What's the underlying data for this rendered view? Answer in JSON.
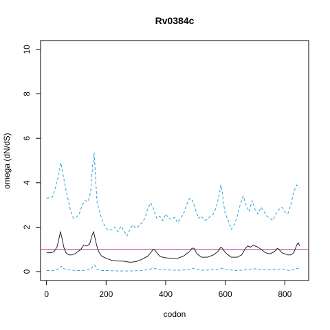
{
  "chart_data": {
    "type": "line",
    "title": "Rv0384c",
    "xlabel": "codon",
    "ylabel": "omega (dN/dS)",
    "xlim": [
      -20,
      880
    ],
    "ylim": [
      -0.4,
      10.4
    ],
    "xticks": [
      0,
      200,
      400,
      600,
      800
    ],
    "yticks": [
      0,
      2,
      4,
      6,
      8,
      10
    ],
    "grid": false,
    "reference_line": {
      "y": 1,
      "color": "#cc3399"
    },
    "series": [
      {
        "style": "dashed",
        "color": "#29a3d9",
        "x": [
          0,
          20,
          30,
          40,
          48,
          55,
          65,
          80,
          90,
          100,
          110,
          120,
          130,
          140,
          148,
          155,
          160,
          165,
          170,
          180,
          190,
          200,
          210,
          220,
          230,
          240,
          250,
          260,
          270,
          280,
          290,
          300,
          310,
          320,
          330,
          340,
          350,
          360,
          370,
          380,
          390,
          400,
          410,
          420,
          430,
          440,
          450,
          460,
          470,
          480,
          490,
          500,
          510,
          520,
          530,
          540,
          550,
          560,
          570,
          580,
          585,
          590,
          595,
          600,
          610,
          620,
          630,
          640,
          650,
          660,
          670,
          680,
          690,
          700,
          710,
          720,
          730,
          740,
          750,
          760,
          770,
          780,
          790,
          800,
          810,
          820,
          830,
          840,
          850
        ],
        "values": [
          3.3,
          3.35,
          3.8,
          4.3,
          4.9,
          4.4,
          3.7,
          2.8,
          2.4,
          2.45,
          2.6,
          3.0,
          3.2,
          3.15,
          3.6,
          4.8,
          5.35,
          4.1,
          3.1,
          2.6,
          2.2,
          1.95,
          1.85,
          1.9,
          2.0,
          1.8,
          2.05,
          1.85,
          1.6,
          1.9,
          2.1,
          1.95,
          2.05,
          2.2,
          2.4,
          2.85,
          3.1,
          2.8,
          2.4,
          2.5,
          2.3,
          2.6,
          2.4,
          2.35,
          2.45,
          2.2,
          2.4,
          2.6,
          3.0,
          3.3,
          3.2,
          2.8,
          2.4,
          2.5,
          2.3,
          2.35,
          2.5,
          2.6,
          2.9,
          3.5,
          3.9,
          3.6,
          3.0,
          2.6,
          2.3,
          1.9,
          2.1,
          2.5,
          3.0,
          3.4,
          3.0,
          2.7,
          3.2,
          2.8,
          2.6,
          2.9,
          2.7,
          2.5,
          2.4,
          2.3,
          2.6,
          2.8,
          2.9,
          2.7,
          2.6,
          3.0,
          3.6,
          3.9,
          3.8
        ]
      },
      {
        "style": "solid",
        "color": "#222222",
        "x": [
          0,
          15,
          25,
          35,
          42,
          47,
          52,
          58,
          65,
          75,
          85,
          95,
          105,
          115,
          125,
          135,
          145,
          152,
          158,
          162,
          168,
          175,
          185,
          200,
          220,
          240,
          260,
          280,
          300,
          320,
          340,
          350,
          358,
          362,
          370,
          380,
          390,
          400,
          420,
          440,
          460,
          470,
          480,
          488,
          495,
          505,
          520,
          540,
          560,
          575,
          585,
          590,
          595,
          605,
          620,
          640,
          655,
          668,
          675,
          685,
          695,
          700,
          710,
          720,
          735,
          750,
          765,
          775,
          780,
          790,
          800,
          810,
          820,
          830,
          840,
          845,
          850
        ],
        "values": [
          0.85,
          0.85,
          0.9,
          1.1,
          1.5,
          1.8,
          1.5,
          1.1,
          0.85,
          0.75,
          0.75,
          0.8,
          0.9,
          1.0,
          1.2,
          1.15,
          1.25,
          1.6,
          1.8,
          1.55,
          1.2,
          0.9,
          0.7,
          0.6,
          0.5,
          0.48,
          0.47,
          0.42,
          0.45,
          0.55,
          0.7,
          0.85,
          1.0,
          1.0,
          0.85,
          0.7,
          0.65,
          0.62,
          0.6,
          0.6,
          0.7,
          0.8,
          0.9,
          1.05,
          1.05,
          0.8,
          0.65,
          0.65,
          0.75,
          0.9,
          1.1,
          1.05,
          0.95,
          0.8,
          0.65,
          0.65,
          0.75,
          1.05,
          1.15,
          1.1,
          1.2,
          1.15,
          1.1,
          1.0,
          0.85,
          0.8,
          0.9,
          1.05,
          1.0,
          0.85,
          0.8,
          0.75,
          0.75,
          0.85,
          1.2,
          1.3,
          1.15
        ]
      },
      {
        "style": "dashed",
        "color": "#29a3d9",
        "x": [
          0,
          20,
          35,
          45,
          50,
          55,
          65,
          80,
          100,
          120,
          140,
          150,
          158,
          162,
          170,
          185,
          200,
          240,
          280,
          320,
          345,
          358,
          362,
          375,
          400,
          440,
          470,
          485,
          492,
          500,
          520,
          560,
          580,
          588,
          595,
          610,
          640,
          660,
          670,
          690,
          700,
          720,
          740,
          770,
          790,
          800,
          820,
          840,
          850
        ],
        "values": [
          0.05,
          0.05,
          0.1,
          0.15,
          0.25,
          0.15,
          0.1,
          0.07,
          0.05,
          0.05,
          0.08,
          0.12,
          0.3,
          0.28,
          0.1,
          0.05,
          0.05,
          0.03,
          0.03,
          0.05,
          0.1,
          0.15,
          0.15,
          0.1,
          0.08,
          0.06,
          0.08,
          0.12,
          0.15,
          0.1,
          0.06,
          0.08,
          0.12,
          0.15,
          0.12,
          0.08,
          0.05,
          0.07,
          0.12,
          0.1,
          0.13,
          0.1,
          0.08,
          0.1,
          0.12,
          0.08,
          0.05,
          0.15,
          0.12
        ]
      }
    ]
  }
}
